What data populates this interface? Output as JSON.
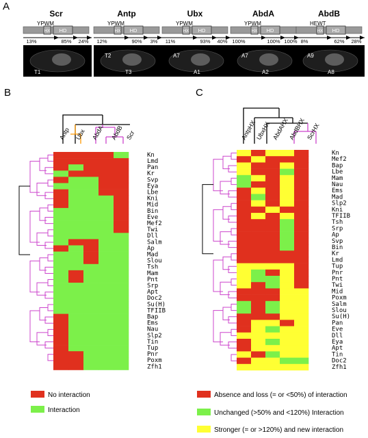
{
  "panel_labels": {
    "a": "A",
    "b": "B",
    "c": "C"
  },
  "panel_a": {
    "proteins": [
      {
        "name": "Scr",
        "motif": "YPWM",
        "hx": "HX",
        "hd": "HD",
        "pcts": [
          "13%",
          "85%",
          "24%"
        ],
        "segments": [
          "T1"
        ]
      },
      {
        "name": "Antp",
        "motif": "YPWM",
        "hx": "HX",
        "hd": "HD",
        "pcts": [
          "12%",
          "90%",
          "3%"
        ],
        "segments": [
          "T2",
          "T3"
        ]
      },
      {
        "name": "Ubx",
        "motif": "YPWM",
        "hx": "HX",
        "hd": "HD",
        "pcts": [
          "11%",
          "93%",
          "40%"
        ],
        "segments": [
          "A7",
          "A1"
        ]
      },
      {
        "name": "AbdA",
        "motif": "YPWM",
        "hx": "HX",
        "hd": "HD",
        "pcts": [
          "100%",
          "100%",
          "100%"
        ],
        "segments": [
          "A7",
          "A2"
        ]
      },
      {
        "name": "AbdB",
        "motif": "HEWT",
        "hx": "HX",
        "hd": "HD",
        "pcts": [
          "8%",
          "62%",
          "28%"
        ],
        "segments": [
          "A9",
          "A8"
        ]
      }
    ]
  },
  "panel_b": {
    "columns": [
      "Antp",
      "Ubx",
      "AbdA",
      "AbdB",
      "Scr"
    ],
    "rows": [
      "Kn",
      "Lmd",
      "Pan",
      "Kr",
      "Svp",
      "Eya",
      "Lbe",
      "Kni",
      "Mid",
      "Bin",
      "Eve",
      "Mef2",
      "Twi",
      "Dll",
      "Salm",
      "Ap",
      "Mad",
      "Slou",
      "Tsh",
      "Mam",
      "Pnt",
      "Srp",
      "Apt",
      "Doc2",
      "Su(H)",
      "TFIIB",
      "Bap",
      "Ems",
      "Nau",
      "Slp2",
      "Tin",
      "Tup",
      "Pnr",
      "Poxm",
      "Zfh1"
    ],
    "legend": [
      {
        "label": "No interaction",
        "color": "#e0301e"
      },
      {
        "label": "Interaction",
        "color": "#7cf04a"
      }
    ]
  },
  "panel_c": {
    "columns": [
      "AntpHX",
      "UbxHX",
      "AbdAHX",
      "AbdBHX",
      "ScrHX"
    ],
    "rows": [
      "Kn",
      "Mef2",
      "Bap",
      "Lbe",
      "Mam",
      "Nau",
      "Ems",
      "Mad",
      "Slp2",
      "Kni",
      "TFIIB",
      "Tsh",
      "Srp",
      "Ap",
      "Svp",
      "Bin",
      "Kr",
      "Lmd",
      "Tup",
      "Pnr",
      "Pnt",
      "Twi",
      "Mid",
      "Poxm",
      "Salm",
      "Slou",
      "Su(H)",
      "Pan",
      "Eve",
      "Dll",
      "Eya",
      "Apt",
      "Tin",
      "Doc2",
      "Zfh1"
    ],
    "legend": [
      {
        "label": "Absence and loss (= or <50%) of interaction",
        "color": "#e0301e"
      },
      {
        "label": "Unchanged (>50% and <120%) Interaction",
        "color": "#7cf04a"
      },
      {
        "label": "Stronger (= or >120%) and new interaction",
        "color": "#ffff33"
      }
    ]
  },
  "colors": {
    "red": "#e0301e",
    "green": "#7cf04a",
    "yellow": "#ffff33",
    "magenta": "#cc44cc",
    "orange": "#ff9900"
  }
}
